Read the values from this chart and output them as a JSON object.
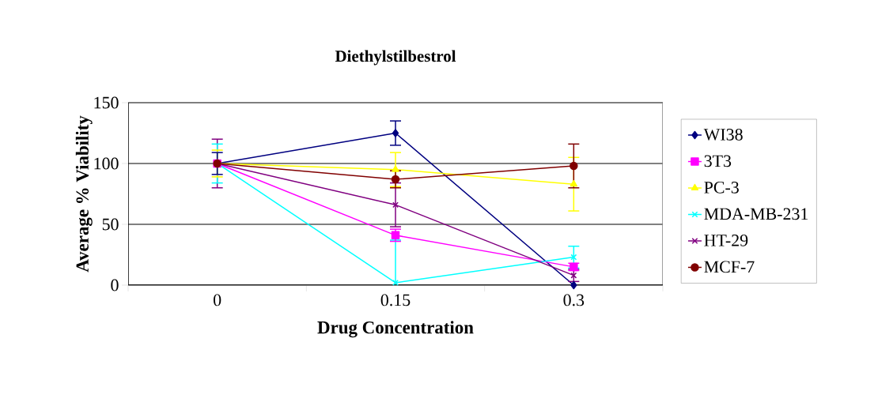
{
  "chart_data": {
    "type": "line",
    "title": "Diethylstilbestrol",
    "xlabel": "Drug Concentration",
    "ylabel": "Average % Viability",
    "categories": [
      "0",
      "0.15",
      "0.3"
    ],
    "series": [
      {
        "name": "WI38",
        "color": "#000080",
        "marker": "diamond",
        "values": [
          100,
          125,
          0
        ],
        "errors": [
          9,
          10,
          null
        ]
      },
      {
        "name": "3T3",
        "color": "#ff00ff",
        "marker": "square",
        "values": [
          100,
          41,
          15
        ],
        "errors": [
          null,
          5,
          3
        ]
      },
      {
        "name": "PC-3",
        "color": "#ffff00",
        "marker": "triangle",
        "values": [
          100,
          95,
          83
        ],
        "errors": [
          11,
          14,
          22
        ]
      },
      {
        "name": "MDA-MB-231",
        "color": "#00ffff",
        "marker": "cross",
        "values": [
          100,
          2,
          23
        ],
        "errors": [
          16,
          35,
          9
        ]
      },
      {
        "name": "HT-29",
        "color": "#800080",
        "marker": "cross",
        "values": [
          100,
          66,
          8
        ],
        "errors": [
          20,
          18,
          5
        ]
      },
      {
        "name": "MCF-7",
        "color": "#800000",
        "marker": "circle",
        "values": [
          100,
          87,
          98
        ],
        "errors": [
          null,
          7,
          18
        ]
      }
    ],
    "ylim": [
      0,
      150
    ],
    "yticks": [
      0,
      50,
      100,
      150
    ],
    "grid": "y",
    "legend": "right"
  }
}
